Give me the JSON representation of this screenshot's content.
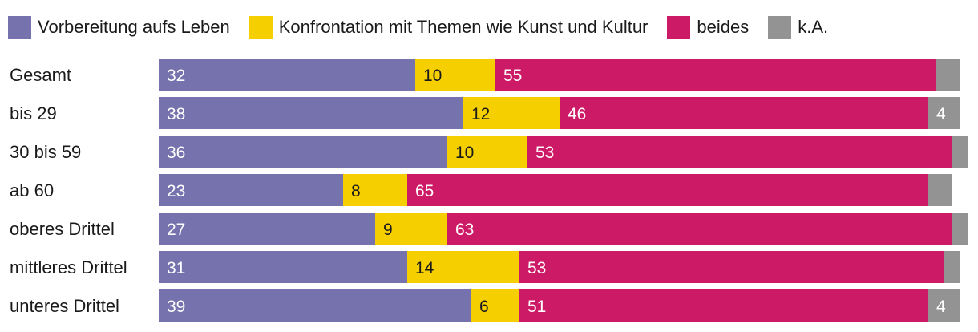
{
  "chart_data": {
    "type": "bar",
    "orientation": "horizontal",
    "stacked": true,
    "categories": [
      "Gesamt",
      "bis 29",
      "30 bis 59",
      "ab 60",
      "oberes Drittel",
      "mittleres Drittel",
      "unteres Drittel"
    ],
    "series": [
      {
        "name": "Vorbereitung aufs Leben",
        "color": "#7672ad",
        "label_color": "#ffffff",
        "values": [
          32,
          38,
          36,
          23,
          27,
          31,
          39
        ]
      },
      {
        "name": "Konfrontation mit Themen wie Kunst und Kultur",
        "color": "#f5cf00",
        "label_color": "#1a1a1a",
        "values": [
          10,
          12,
          10,
          8,
          9,
          14,
          6
        ]
      },
      {
        "name": "beides",
        "color": "#cd1a66",
        "label_color": "#ffffff",
        "values": [
          55,
          46,
          53,
          65,
          63,
          53,
          51
        ]
      },
      {
        "name": "k.A.",
        "color": "#939393",
        "label_color": "#ffffff",
        "values": [
          3,
          4,
          2,
          3,
          2,
          2,
          4
        ]
      }
    ],
    "value_labels": [
      [
        "32",
        "10",
        "55",
        ""
      ],
      [
        "38",
        "12",
        "46",
        "4"
      ],
      [
        "36",
        "10",
        "53",
        ""
      ],
      [
        "23",
        "8",
        "65",
        ""
      ],
      [
        "27",
        "9",
        "63",
        ""
      ],
      [
        "31",
        "14",
        "53",
        ""
      ],
      [
        "39",
        "6",
        "51",
        "4"
      ]
    ],
    "xlim": [
      0,
      100
    ],
    "legend": "top-left",
    "grid": false
  }
}
